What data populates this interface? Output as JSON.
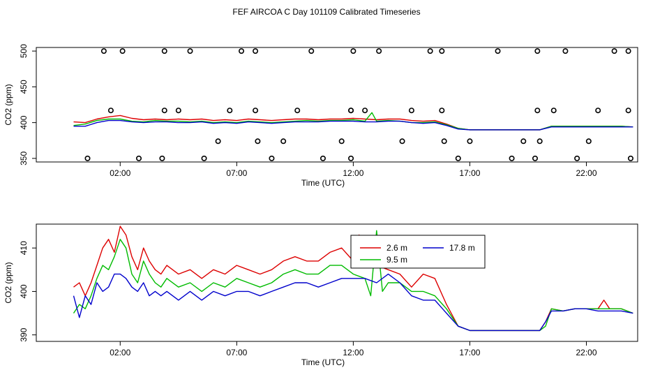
{
  "title": "FEF AIRCOA C  Day 101109  Calibrated Timeseries",
  "chart_data": [
    {
      "type": "line+scatter",
      "ylabel": "CO2 (ppm)",
      "xlabel": "Time (UTC)",
      "xlim": [
        -1.6,
        24.2
      ],
      "ylim": [
        345,
        505
      ],
      "xticks": [
        2,
        7,
        12,
        17,
        22
      ],
      "xtick_labels": [
        "02:00",
        "07:00",
        "12:00",
        "17:00",
        "22:00"
      ],
      "yticks": [
        350,
        400,
        450,
        500
      ],
      "ytick_labels": [
        "350",
        "400",
        "450",
        "500"
      ],
      "series": [
        {
          "name": "2.6 m",
          "color": "#dd0000",
          "x": [
            0.0,
            0.5,
            1.0,
            1.5,
            2.0,
            2.5,
            3.0,
            3.5,
            4.0,
            4.5,
            5.0,
            5.5,
            6.0,
            6.5,
            7.0,
            7.5,
            8.0,
            8.5,
            9.0,
            9.5,
            10.0,
            10.5,
            11.0,
            11.5,
            12.0,
            12.5,
            13.0,
            13.5,
            14.0,
            14.5,
            15.0,
            15.5,
            16.0,
            16.5,
            17.0,
            17.5,
            18.0,
            18.5,
            19.0,
            19.5,
            20.0,
            20.5,
            21.0,
            21.5,
            22.0,
            22.5,
            23.0,
            23.5,
            24.0
          ],
          "y": [
            401,
            400,
            405,
            408,
            410,
            406,
            404,
            405,
            404,
            405,
            404,
            405,
            403,
            404,
            403,
            405,
            404,
            403,
            404,
            405,
            405,
            404,
            405,
            405,
            406,
            405,
            404,
            405,
            405,
            403,
            402,
            403,
            398,
            392,
            390,
            390,
            390,
            390,
            390,
            390,
            390,
            395,
            395,
            395,
            395,
            395,
            395,
            395,
            394
          ]
        },
        {
          "name": "9.5 m",
          "color": "#00bb00",
          "x": [
            0.0,
            0.5,
            1.0,
            1.5,
            2.0,
            2.5,
            3.0,
            3.5,
            4.0,
            4.5,
            5.0,
            5.5,
            6.0,
            6.5,
            7.0,
            7.5,
            8.0,
            8.5,
            9.0,
            9.5,
            10.0,
            10.5,
            11.0,
            11.5,
            12.0,
            12.5,
            12.8,
            13.0,
            13.5,
            14.0,
            14.5,
            15.0,
            15.5,
            16.0,
            16.5,
            17.0,
            17.5,
            18.0,
            18.5,
            19.0,
            19.5,
            20.0,
            20.5,
            21.0,
            21.5,
            22.0,
            22.5,
            23.0,
            23.5,
            24.0
          ],
          "y": [
            396,
            398,
            403,
            405,
            405,
            402,
            401,
            403,
            402,
            402,
            401,
            402,
            400,
            401,
            400,
            402,
            401,
            400,
            401,
            402,
            403,
            402,
            403,
            403,
            404,
            402,
            414,
            402,
            403,
            402,
            400,
            400,
            401,
            397,
            392,
            390,
            390,
            390,
            390,
            390,
            390,
            390,
            395,
            395,
            395,
            395,
            395,
            395,
            395,
            394
          ]
        },
        {
          "name": "17.8 m",
          "color": "#0000cc",
          "x": [
            0.0,
            0.5,
            1.0,
            1.5,
            2.0,
            2.5,
            3.0,
            3.5,
            4.0,
            4.5,
            5.0,
            5.5,
            6.0,
            6.5,
            7.0,
            7.5,
            8.0,
            8.5,
            9.0,
            9.5,
            10.0,
            10.5,
            11.0,
            11.5,
            12.0,
            12.5,
            13.0,
            13.5,
            14.0,
            14.5,
            15.0,
            15.5,
            16.0,
            16.5,
            17.0,
            17.5,
            18.0,
            18.5,
            19.0,
            19.5,
            20.0,
            20.5,
            21.0,
            21.5,
            22.0,
            22.5,
            23.0,
            23.5,
            24.0
          ],
          "y": [
            395,
            395,
            400,
            403,
            403,
            401,
            400,
            401,
            401,
            400,
            400,
            401,
            399,
            400,
            399,
            401,
            400,
            399,
            400,
            401,
            401,
            401,
            402,
            402,
            402,
            401,
            401,
            402,
            402,
            400,
            399,
            400,
            396,
            391,
            390,
            390,
            390,
            390,
            390,
            390,
            390,
            394,
            394,
            394,
            394,
            394,
            394,
            394,
            394
          ]
        }
      ],
      "markers": {
        "style": "open-circle",
        "x": [
          1.3,
          2.1,
          3.9,
          5.0,
          7.2,
          7.8,
          10.2,
          12.0,
          13.1,
          15.3,
          15.8,
          18.2,
          19.9,
          21.1,
          23.2,
          23.8,
          1.6,
          3.9,
          4.5,
          6.7,
          7.8,
          9.6,
          11.9,
          11.9,
          14.5,
          15.8,
          19.9,
          20.6,
          22.5,
          23.8,
          0.6,
          2.8,
          3.8,
          5.6,
          6.2,
          7.9,
          8.5,
          9.0,
          10.7,
          11.5,
          11.9,
          12.5,
          14.1,
          15.9,
          16.5,
          17.0,
          18.8,
          19.3,
          19.8,
          20.0,
          21.6,
          22.1,
          23.9
        ],
        "y": [
          500,
          500,
          500,
          500,
          500,
          500,
          500,
          500,
          500,
          500,
          500,
          500,
          500,
          500,
          500,
          500,
          417,
          417,
          417,
          417,
          417,
          417,
          417,
          417,
          417,
          417,
          417,
          417,
          417,
          417,
          350,
          350,
          350,
          350,
          374,
          374,
          350,
          374,
          350,
          374,
          350,
          417,
          374,
          374,
          350,
          374,
          350,
          374,
          350,
          374,
          350,
          374,
          350
        ]
      }
    },
    {
      "type": "line",
      "ylabel": "CO2 (ppm)",
      "xlabel": "Time (UTC)",
      "xlim": [
        -1.6,
        24.2
      ],
      "ylim": [
        388.5,
        415.5
      ],
      "xticks": [
        2,
        7,
        12,
        17,
        22
      ],
      "xtick_labels": [
        "02:00",
        "07:00",
        "12:00",
        "17:00",
        "22:00"
      ],
      "yticks": [
        390,
        400,
        410
      ],
      "ytick_labels": [
        "390",
        "400",
        "410"
      ],
      "legend": {
        "position": "top-right",
        "labels": [
          "2.6 m",
          "9.5 m",
          "17.8 m"
        ]
      },
      "series": [
        {
          "name": "2.6 m",
          "color": "#dd0000",
          "x": [
            0.0,
            0.25,
            0.5,
            0.75,
            1.0,
            1.25,
            1.5,
            1.75,
            2.0,
            2.25,
            2.5,
            2.75,
            3.0,
            3.25,
            3.5,
            3.75,
            4.0,
            4.5,
            5.0,
            5.5,
            6.0,
            6.5,
            7.0,
            7.5,
            8.0,
            8.5,
            9.0,
            9.5,
            10.0,
            10.5,
            11.0,
            11.5,
            12.0,
            12.25,
            12.5,
            12.75,
            13.0,
            13.5,
            14.0,
            14.5,
            15.0,
            15.5,
            16.0,
            16.5,
            17.0,
            17.5,
            18.0,
            18.5,
            19.0,
            19.5,
            20.0,
            20.25,
            20.5,
            21.0,
            21.5,
            22.0,
            22.5,
            22.75,
            23.0,
            23.5,
            24.0
          ],
          "y": [
            401,
            402,
            399,
            402,
            406,
            410,
            412,
            409,
            415,
            413,
            408,
            405,
            410,
            407,
            405,
            404,
            406,
            404,
            405,
            403,
            405,
            404,
            406,
            405,
            404,
            405,
            407,
            408,
            407,
            407,
            409,
            410,
            407,
            413,
            407,
            411,
            406,
            405,
            404,
            401,
            404,
            403,
            397,
            392,
            391,
            391,
            391,
            391,
            391,
            391,
            391,
            393,
            396,
            395.5,
            396,
            396,
            396,
            398,
            396,
            396,
            395
          ]
        },
        {
          "name": "9.5 m",
          "color": "#00bb00",
          "x": [
            0.0,
            0.25,
            0.5,
            0.75,
            1.0,
            1.25,
            1.5,
            1.75,
            2.0,
            2.25,
            2.5,
            2.75,
            3.0,
            3.25,
            3.5,
            3.75,
            4.0,
            4.5,
            5.0,
            5.5,
            6.0,
            6.5,
            7.0,
            7.5,
            8.0,
            8.5,
            9.0,
            9.5,
            10.0,
            10.5,
            11.0,
            11.5,
            12.0,
            12.5,
            12.75,
            13.0,
            13.25,
            13.5,
            14.0,
            14.5,
            15.0,
            15.5,
            16.0,
            16.5,
            17.0,
            17.5,
            18.0,
            18.5,
            19.0,
            19.5,
            20.0,
            20.25,
            20.5,
            21.0,
            21.5,
            22.0,
            22.5,
            23.0,
            23.5,
            24.0
          ],
          "y": [
            395,
            397,
            396,
            399,
            403,
            406,
            405,
            408,
            412,
            410,
            404,
            402,
            407,
            404,
            402,
            401,
            403,
            401,
            402,
            400,
            402,
            401,
            403,
            402,
            401,
            402,
            404,
            405,
            404,
            404,
            406,
            406,
            404,
            403,
            399,
            414,
            400,
            402,
            402,
            400,
            400,
            399,
            396,
            392,
            391,
            391,
            391,
            391,
            391,
            391,
            391,
            392,
            396,
            395.5,
            396,
            396,
            396,
            396,
            396,
            395
          ]
        },
        {
          "name": "17.8 m",
          "color": "#0000cc",
          "x": [
            0.0,
            0.25,
            0.5,
            0.75,
            1.0,
            1.25,
            1.5,
            1.75,
            2.0,
            2.25,
            2.5,
            2.75,
            3.0,
            3.25,
            3.5,
            3.75,
            4.0,
            4.5,
            5.0,
            5.5,
            6.0,
            6.5,
            7.0,
            7.5,
            8.0,
            8.5,
            9.0,
            9.5,
            10.0,
            10.5,
            11.0,
            11.5,
            12.0,
            12.5,
            13.0,
            13.5,
            14.0,
            14.5,
            15.0,
            15.5,
            16.0,
            16.5,
            17.0,
            17.5,
            18.0,
            18.5,
            19.0,
            19.5,
            20.0,
            20.25,
            20.5,
            21.0,
            21.5,
            22.0,
            22.5,
            23.0,
            23.5,
            24.0
          ],
          "y": [
            399,
            394,
            399,
            397,
            402,
            400,
            401,
            404,
            404,
            403,
            401,
            400,
            402,
            399,
            400,
            399,
            400,
            398,
            400,
            398,
            400,
            399,
            400,
            400,
            399,
            400,
            401,
            402,
            402,
            401,
            402,
            403,
            403,
            403,
            402,
            404,
            402,
            399,
            398,
            398,
            395,
            392,
            391,
            391,
            391,
            391,
            391,
            391,
            391,
            393,
            395.5,
            395.5,
            396,
            396,
            395.5,
            395.5,
            395.5,
            395
          ]
        }
      ]
    }
  ]
}
